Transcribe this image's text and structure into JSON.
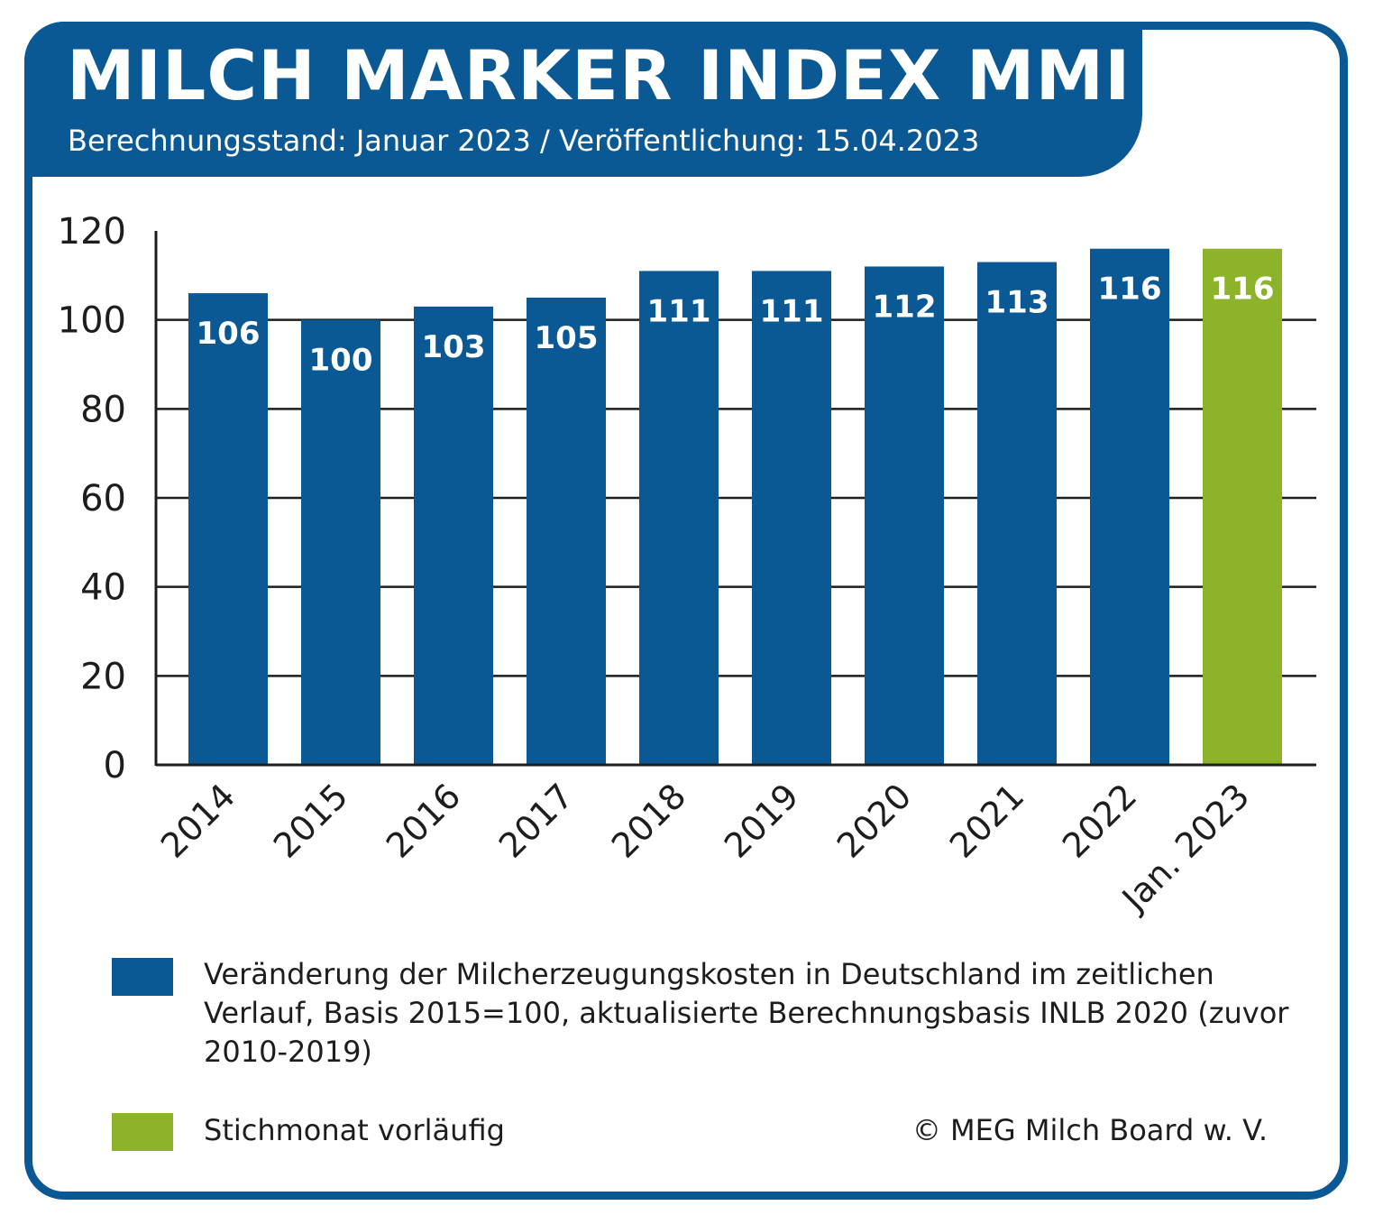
{
  "header": {
    "title": "MILCH MARKER INDEX MMI",
    "subtitle": "Berechnungsstand: Januar 2023 / Veröffentlichung: 15.04.2023"
  },
  "chart_data": {
    "type": "bar",
    "categories": [
      "2014",
      "2015",
      "2016",
      "2017",
      "2018",
      "2019",
      "2020",
      "2021",
      "2022",
      "Jan. 2023"
    ],
    "values": [
      106,
      100,
      103,
      105,
      111,
      111,
      112,
      113,
      116,
      116
    ],
    "data_labels": [
      "106",
      "100",
      "103",
      "105",
      "111",
      "111",
      "112",
      "113",
      "116",
      "116"
    ],
    "bar_colors": [
      "#0a5994",
      "#0a5994",
      "#0a5994",
      "#0a5994",
      "#0a5994",
      "#0a5994",
      "#0a5994",
      "#0a5994",
      "#0a5994",
      "#8db32a"
    ],
    "ylim": [
      0,
      120
    ],
    "y_ticks": [
      0,
      20,
      40,
      60,
      80,
      100,
      120
    ],
    "grid": true,
    "x_tick_rotation": "diagonal"
  },
  "legend": [
    {
      "color": "#0a5994",
      "label": "Veränderung der Milcherzeugungskosten in Deutschland im zeitlichen Verlauf, Basis 2015=100, aktualisierte Berechnungsbasis INLB 2020 (zuvor 2010-2019)"
    },
    {
      "color": "#8db32a",
      "label": "Stichmonat vorläufig"
    }
  ],
  "copyright": "© MEG Milch Board w. V.",
  "colors": {
    "brand_blue": "#0a5994",
    "accent_green": "#8db32a",
    "text": "#1d1d1b"
  }
}
